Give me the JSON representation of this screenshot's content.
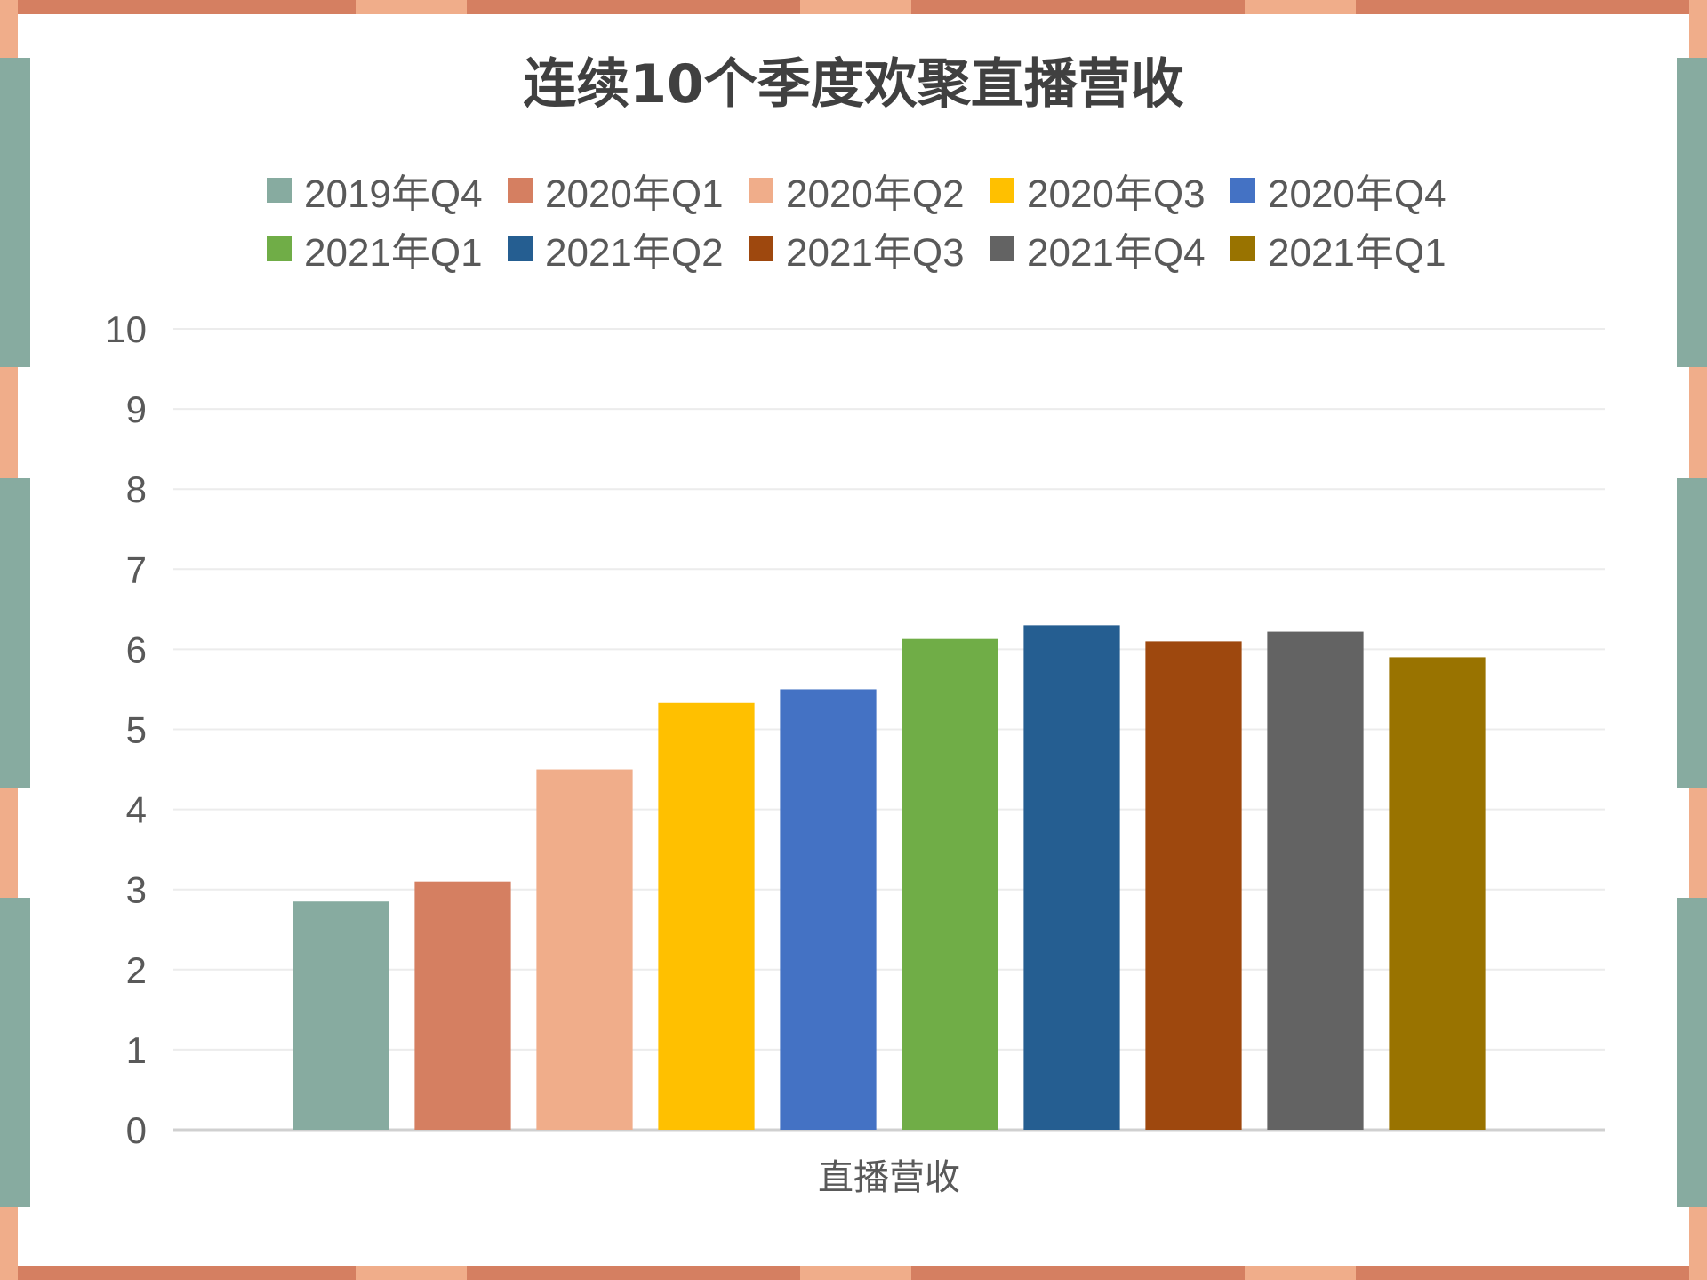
{
  "frame_colors": {
    "bg": "#000000",
    "edge_accent": "#d57f61",
    "edge_light": "#f0ad8a",
    "side_teal": "#87aba0"
  },
  "chart_data": {
    "type": "bar",
    "title": "连续10个季度欢聚直播营收",
    "xlabel": "直播营收",
    "ylabel": "",
    "ylim": [
      0,
      10
    ],
    "yticks": [
      0,
      1,
      2,
      3,
      4,
      5,
      6,
      7,
      8,
      9,
      10
    ],
    "grid": true,
    "legend_position": "top",
    "categories": [
      "直播营收"
    ],
    "series": [
      {
        "name": "2019年Q4",
        "values": [
          2.85
        ],
        "color": "#87aba0"
      },
      {
        "name": "2020年Q1",
        "values": [
          3.1
        ],
        "color": "#d57f61"
      },
      {
        "name": "2020年Q2",
        "values": [
          4.5
        ],
        "color": "#f0ad8a"
      },
      {
        "name": "2020年Q3",
        "values": [
          5.33
        ],
        "color": "#ffc000"
      },
      {
        "name": "2020年Q4",
        "values": [
          5.5
        ],
        "color": "#4472c4"
      },
      {
        "name": "2021年Q1",
        "values": [
          6.13
        ],
        "color": "#70ad47"
      },
      {
        "name": "2021年Q2",
        "values": [
          6.3
        ],
        "color": "#255e91"
      },
      {
        "name": "2021年Q3",
        "values": [
          6.1
        ],
        "color": "#9e480e"
      },
      {
        "name": "2021年Q4",
        "values": [
          6.22
        ],
        "color": "#636363"
      },
      {
        "name": "2021年Q1",
        "values": [
          5.9
        ],
        "color": "#997300"
      }
    ]
  }
}
